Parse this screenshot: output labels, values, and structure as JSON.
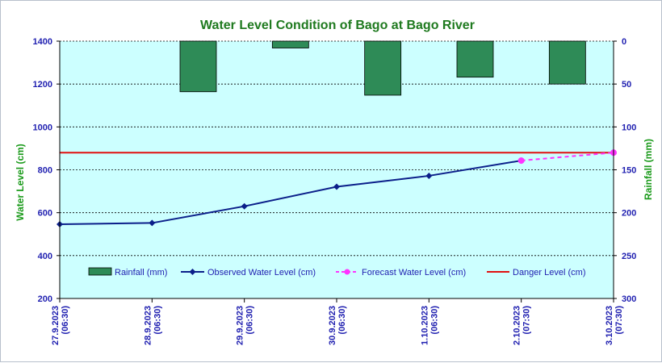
{
  "chart_data": {
    "type": "line",
    "title": "Water Level Condition  of Bago at Bago River",
    "ylabel": "Water Level (cm)",
    "y2label": "Rainfall (mm)",
    "ylim": [
      200,
      1400
    ],
    "yticks": [
      200,
      400,
      600,
      800,
      1000,
      1200,
      1400
    ],
    "y2lim": [
      0,
      300
    ],
    "y2ticks": [
      0,
      50,
      100,
      150,
      200,
      250,
      300
    ],
    "y2_reversed": true,
    "grid": true,
    "legend_position": "bottom",
    "categories": [
      [
        "27.9.2023",
        "(06:30)"
      ],
      [
        "28.9.2023",
        "(06:30)"
      ],
      [
        "29.9.2023",
        "(06:30)"
      ],
      [
        "30.9.2023",
        "(06:30)"
      ],
      [
        "1.10.2023",
        "(06:30)"
      ],
      [
        "2.10.2023",
        "(07:30)"
      ],
      [
        "3.10.2023",
        "(07:30)"
      ]
    ],
    "series": [
      {
        "name": "Rainfall (mm)",
        "type": "bar",
        "axis": "right",
        "color": "#2e8b57",
        "values": [
          0,
          59,
          8,
          63,
          42,
          50,
          null
        ]
      },
      {
        "name": "Observed Water Level (cm)",
        "type": "line",
        "color": "#0b1f8a",
        "values": [
          546,
          552,
          630,
          721,
          772,
          843,
          null
        ]
      },
      {
        "name": "Forecast Water Level (cm)",
        "type": "line",
        "dashed": true,
        "color": "#ff33ff",
        "values": [
          null,
          null,
          null,
          null,
          null,
          843,
          880
        ]
      },
      {
        "name": "Danger Level (cm)",
        "type": "hline",
        "color": "#e01010",
        "value": 880
      }
    ]
  },
  "colors": {
    "plot_background": "#ccffff"
  }
}
